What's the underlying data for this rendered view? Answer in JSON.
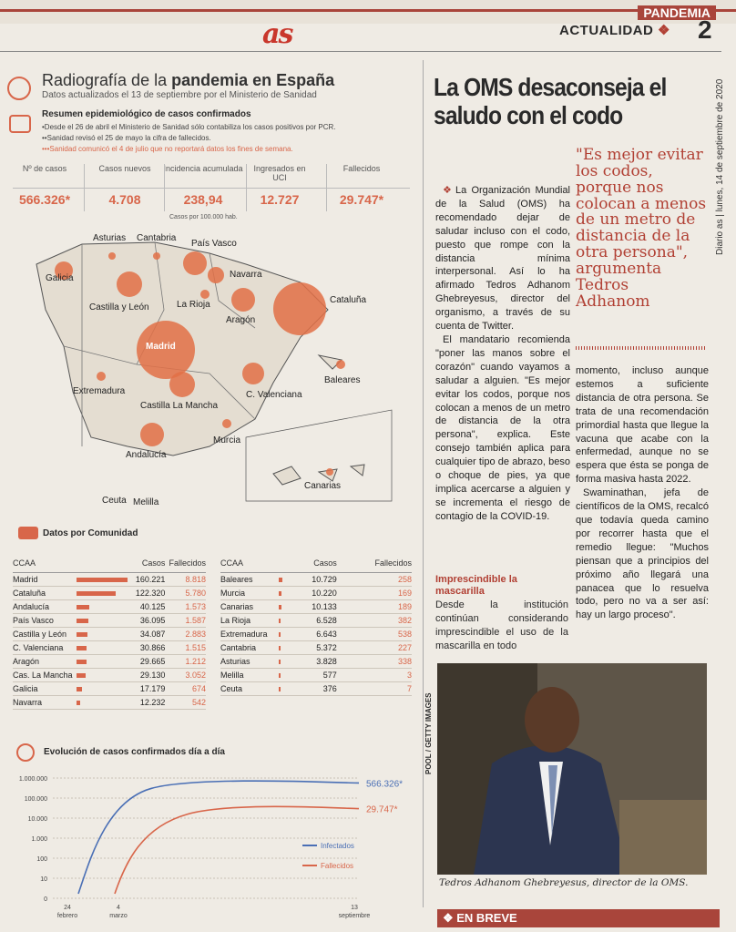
{
  "header": {
    "section": "PANDEMIA",
    "category": "ACTUALIDAD",
    "separator": "❖",
    "page": "2",
    "logo": "as",
    "sideinfo": "Diario as | lunes, 14 de septiembre de 2020"
  },
  "info": {
    "title_pre": "Radiografía de la ",
    "title_bold": "pandemia en España",
    "subtitle": "Datos actualizados el 13 de septiembre por el Ministerio de Sanidad",
    "summary_title": "Resumen epidemiológico de casos confirmados",
    "notes": [
      "•Desde el 26 de abril el Ministerio de Sanidad sólo contabiliza los casos positivos por PCR.",
      "••Sanidad revisó el 25 de mayo la cifra de fallecidos.",
      "•••Sanidad comunicó el 4 de julio que no reportará datos los fines de semana."
    ],
    "stats": [
      {
        "label": "Nº de casos",
        "value": "566.326*"
      },
      {
        "label": "Casos nuevos",
        "value": "4.708"
      },
      {
        "label": "Incidencia acumulada",
        "value": "238,94"
      },
      {
        "label": "Ingresados en UCI",
        "value": "12.727"
      },
      {
        "label": "Fallecidos",
        "value": "29.747*"
      }
    ],
    "stat_note": "Casos por 100.000 hab."
  },
  "map": {
    "labels": [
      "Asturias",
      "Cantabria",
      "País Vasco",
      "Galicia",
      "Navarra",
      "Castilla y León",
      "La Rioja",
      "Cataluña",
      "Aragón",
      "Madrid",
      "Baleares",
      "Extremadura",
      "C. Valenciana",
      "Castilla La Mancha",
      "Murcia",
      "Andalucía",
      "Canarias",
      "Ceuta",
      "Melilla"
    ]
  },
  "ccaa": {
    "title": "Datos por Comunidad",
    "headers": [
      "CCAA",
      "Casos",
      "Fallecidos"
    ],
    "left": [
      [
        "Madrid",
        "160.221",
        "8.818",
        1.0
      ],
      [
        "Cataluña",
        "122.320",
        "5.780",
        0.76
      ],
      [
        "Andalucía",
        "40.125",
        "1.573",
        0.25
      ],
      [
        "País Vasco",
        "36.095",
        "1.587",
        0.23
      ],
      [
        "Castilla y León",
        "34.087",
        "2.883",
        0.21
      ],
      [
        "C. Valenciana",
        "30.866",
        "1.515",
        0.19
      ],
      [
        "Aragón",
        "29.665",
        "1.212",
        0.19
      ],
      [
        "Cas. La Mancha",
        "29.130",
        "3.052",
        0.18
      ],
      [
        "Galicia",
        "17.179",
        "674",
        0.11
      ],
      [
        "Navarra",
        "12.232",
        "542",
        0.08
      ]
    ],
    "right": [
      [
        "Baleares",
        "10.729",
        "258",
        0.07
      ],
      [
        "Murcia",
        "10.220",
        "169",
        0.06
      ],
      [
        "Canarias",
        "10.133",
        "189",
        0.06
      ],
      [
        "La Rioja",
        "6.528",
        "382",
        0.04
      ],
      [
        "Extremadura",
        "6.643",
        "538",
        0.04
      ],
      [
        "Cantabria",
        "5.372",
        "227",
        0.03
      ],
      [
        "Asturias",
        "3.828",
        "338",
        0.02
      ],
      [
        "Melilla",
        "577",
        "3",
        0
      ],
      [
        "Ceuta",
        "376",
        "7",
        0
      ]
    ]
  },
  "evolution": {
    "title": "Evolución de casos confirmados día a día"
  },
  "chart_data": {
    "type": "line",
    "x": [
      "24 febrero",
      "4 marzo",
      "13 septiembre"
    ],
    "yscale": "log",
    "ytick_labels": [
      "0",
      "10",
      "100",
      "1.000",
      "10.000",
      "100.000",
      "1.000.000"
    ],
    "series": [
      {
        "name": "Infectados",
        "end_label": "566.326*",
        "color": "#4a6fb5"
      },
      {
        "name": "Fallecidos",
        "end_label": "29.747*",
        "color": "#d8664a"
      }
    ]
  },
  "article": {
    "headline": "La OMS desaconseja el saludo con el codo",
    "quote": "\"Es mejor evitar los codos, porque nos colocan a menos de un metro de distancia de la otra persona\", argumenta Tedros Adhanom",
    "p1": "La Organización Mundial de la Salud (OMS) ha recomendado dejar de saludar incluso con el codo, puesto que rompe con la distancia mínima interpersonal. Así lo ha afirmado Tedros Adhanom Ghebreyesus, director del organismo, a través de su cuenta de Twitter.",
    "p2": "El mandatario recomienda \"poner las manos sobre el corazón\" cuando vayamos a saludar a alguien. \"Es mejor evitar los codos, porque nos colocan a menos de un metro de distancia de la otra persona\", explica. Este consejo también aplica para cualquier tipo de abrazo, beso o choque de pies, ya que implica acercarse a alguien y se incrementa el riesgo de contagio de la COVID-19.",
    "subhead": "Imprescindible la mascarilla",
    "p3": "Desde la institución continúan considerando imprescindible el uso de la mascarilla en todo",
    "p4": "momento, incluso aunque estemos a suficiente distancia de otra persona. Se trata de una recomendación primordial hasta que llegue la vacuna que acabe con la enfermedad, aunque no se espera que ésta se ponga de forma masiva hasta 2022.",
    "p5": "Swaminathan, jefa de científicos de la OMS, recalcó que todavía queda camino por recorrer hasta que el remedio llegue: \"Muchos piensan que a principios del próximo año llegará una panacea que lo resuelva todo, pero no va a ser así: hay un largo proceso\".",
    "photo_credit": "POOL / GETTY IMAGES",
    "caption": "Tedros Adhanom Ghebreyesus, director de la OMS.",
    "breve": "❖ EN BREVE"
  }
}
